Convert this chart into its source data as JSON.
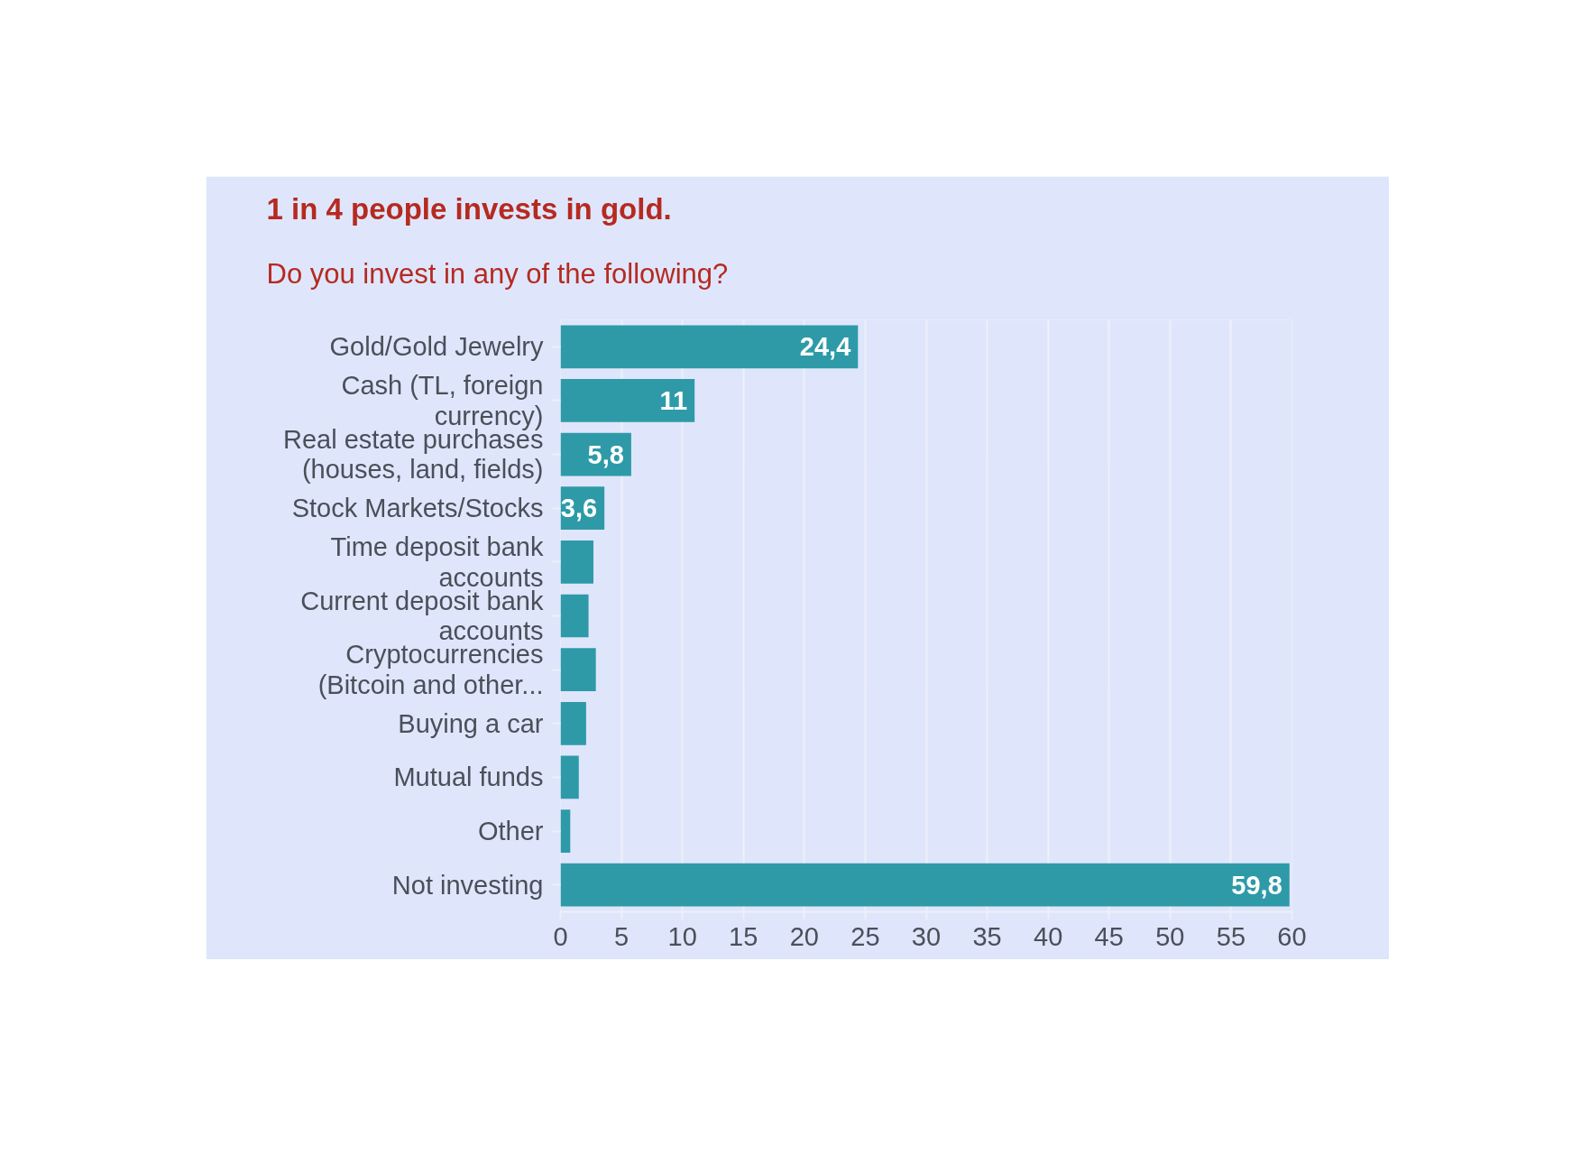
{
  "chart_data": {
    "type": "bar",
    "orientation": "horizontal",
    "title": "1 in 4 people invests in gold.",
    "subtitle": "Do you invest in any of the following?",
    "categories": [
      "Gold/Gold Jewelry",
      "Cash (TL, foreign currency)",
      "Real estate purchases (houses, land, fields)",
      "Stock Markets/Stocks",
      "Time deposit bank accounts",
      "Current deposit bank accounts",
      "Cryptocurrencies (Bitcoin and other...",
      "Buying a car",
      "Mutual funds",
      "Other",
      "Not investing"
    ],
    "values": [
      24.4,
      11,
      5.8,
      3.6,
      2.7,
      2.3,
      2.9,
      2.1,
      1.5,
      0.8,
      59.8
    ],
    "value_labels": [
      "24,4",
      "11",
      "5,8",
      "3,6",
      null,
      null,
      null,
      null,
      null,
      null,
      "59,8"
    ],
    "color": "#2e9aa8",
    "xlim": [
      0,
      60
    ],
    "xticks": [
      0,
      5,
      10,
      15,
      20,
      25,
      30,
      35,
      40,
      45,
      50,
      55,
      60
    ],
    "grid": "x"
  }
}
